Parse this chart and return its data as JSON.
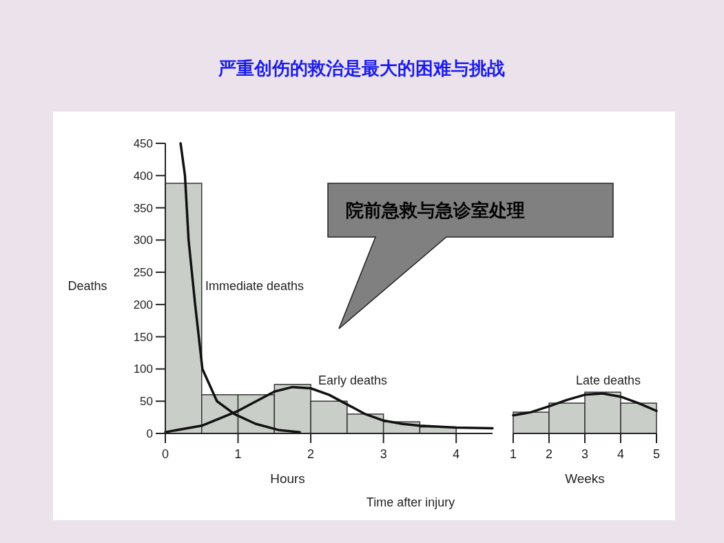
{
  "chart_data": [
    {
      "type": "histogram",
      "title": "严重创伤的救治是最大的困难与挑战",
      "xlabel": "Hours",
      "ylabel": "Deaths",
      "bins": [
        0,
        0.5,
        1,
        1.5,
        2,
        2.5,
        3,
        3.5,
        4
      ],
      "values": [
        388,
        60,
        60,
        76,
        50,
        30,
        18,
        10
      ],
      "color": "#c9cec9",
      "series": [
        {
          "type": "line",
          "color": "#111111",
          "x": [
            0.21,
            0.27,
            0.32,
            0.41,
            0.46,
            0.51,
            0.71,
            0.95,
            1.24,
            1.57,
            1.85
          ],
          "values": [
            450,
            400,
            300,
            200,
            150,
            100,
            50,
            30,
            15,
            5,
            2
          ]
        },
        {
          "type": "line",
          "color": "#111111",
          "x": [
            0,
            0.5,
            1,
            1.25,
            1.5,
            1.75,
            2,
            2.25,
            2.5,
            2.75,
            3,
            3.25,
            3.5,
            4,
            4.5
          ],
          "values": [
            2,
            12,
            35,
            50,
            65,
            72,
            70,
            60,
            45,
            30,
            20,
            15,
            12,
            9,
            8
          ]
        }
      ],
      "xlim": [
        0,
        4.5
      ],
      "ylim": [
        0,
        450
      ],
      "xticks": [
        0,
        1,
        2,
        3,
        4
      ],
      "yticks": [
        0,
        50,
        100,
        150,
        200,
        250,
        300,
        350,
        400,
        450
      ],
      "annotations": [
        "Immediate deaths",
        "Early deaths",
        "院前急救与急诊室处理",
        "Time after injury"
      ]
    },
    {
      "type": "histogram",
      "xlabel": "Weeks",
      "bins": [
        1,
        2,
        3,
        4,
        5
      ],
      "values": [
        33,
        47,
        64,
        47
      ],
      "color": "#c9cec9",
      "series": [
        {
          "type": "line",
          "color": "#111111",
          "x": [
            1,
            1.5,
            2,
            2.5,
            3,
            3.5,
            4,
            4.5,
            5
          ],
          "values": [
            28,
            33,
            42,
            52,
            60,
            62,
            57,
            47,
            35
          ]
        }
      ],
      "xlim": [
        1,
        5
      ],
      "ylim": [
        0,
        450
      ],
      "xticks": [
        1,
        2,
        3,
        4,
        5
      ],
      "tick_labels": "x",
      "annotations": [
        "Late deaths"
      ]
    }
  ]
}
